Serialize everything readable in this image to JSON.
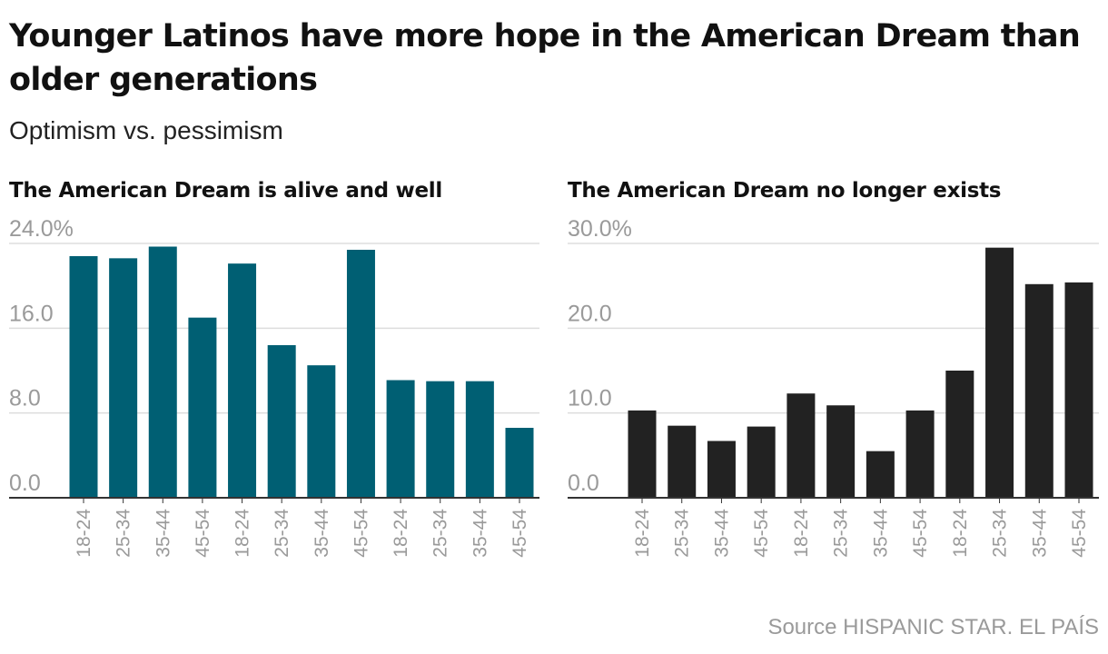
{
  "title": "Younger Latinos have more hope in the American Dream than older generations",
  "subtitle": "Optimism vs. pessimism",
  "source": "Source HISPANIC STAR. EL PAÍS",
  "colors": {
    "alive_bars": "#005f73",
    "exists_bars": "#222222",
    "gridline": "#dddddd",
    "axis": "#333333",
    "tick_text": "#9a9a9a"
  },
  "chart_data": [
    {
      "type": "bar",
      "title": "The American Dream is alive and well",
      "categories": [
        "18-24",
        "25-34",
        "35-44",
        "45-54",
        "18-24",
        "25-34",
        "35-44",
        "45-54",
        "18-24",
        "25-34",
        "35-44",
        "45-54"
      ],
      "values": [
        22.8,
        22.6,
        23.7,
        17.0,
        22.1,
        14.4,
        12.5,
        23.4,
        11.1,
        11.0,
        11.0,
        6.6
      ],
      "yticks": [
        0,
        8,
        16,
        24
      ],
      "ytick_labels": [
        "0.0",
        "8.0",
        "16.0",
        "24.0%"
      ],
      "ylim": [
        0,
        24
      ],
      "grid": true,
      "legend": "none"
    },
    {
      "type": "bar",
      "title": "The American Dream no longer exists",
      "categories": [
        "18-24",
        "25-34",
        "35-44",
        "45-54",
        "18-24",
        "25-34",
        "35-44",
        "45-54",
        "18-24",
        "25-34",
        "35-44",
        "45-54"
      ],
      "values": [
        10.3,
        8.5,
        6.7,
        8.4,
        12.3,
        10.9,
        5.5,
        10.3,
        15.0,
        29.5,
        25.2,
        25.4
      ],
      "yticks": [
        0,
        10,
        20,
        30
      ],
      "ytick_labels": [
        "0.0",
        "10.0",
        "20.0",
        "30.0%"
      ],
      "ylim": [
        0,
        30
      ],
      "grid": true,
      "legend": "none"
    }
  ]
}
